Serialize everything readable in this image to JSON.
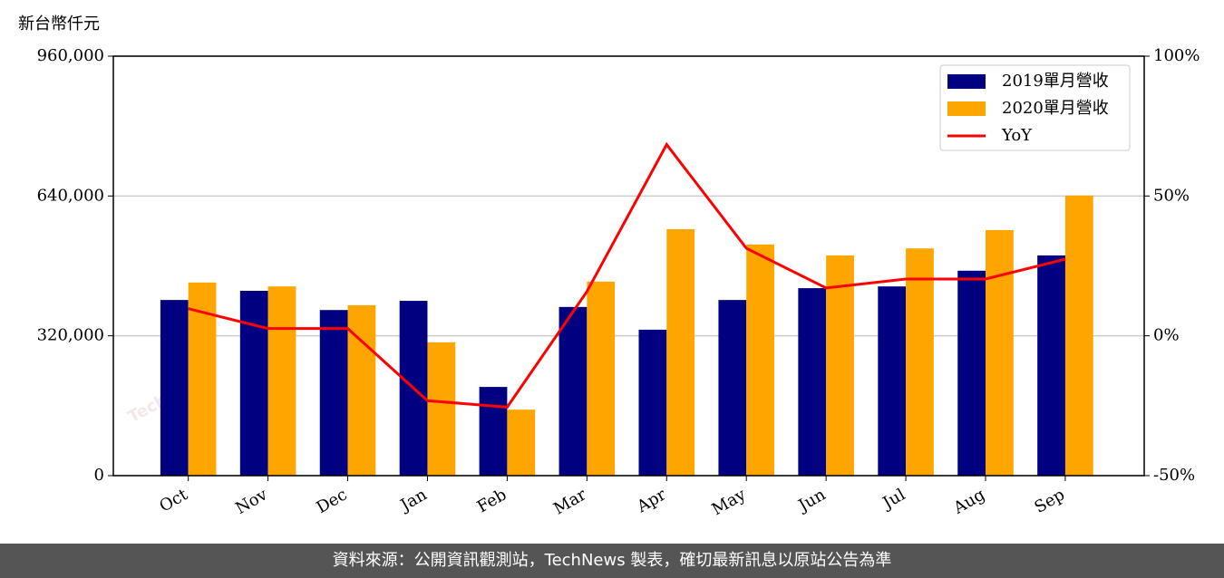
{
  "chart_data": {
    "type": "bar",
    "unit_label": "新台幣仟元",
    "watermark": "TechNews",
    "footer": "資料來源：公開資訊觀測站，TechNews 製表，確切最新訊息以原站公告為準",
    "categories": [
      "Oct",
      "Nov",
      "Dec",
      "Jan",
      "Feb",
      "Mar",
      "Apr",
      "May",
      "Jun",
      "Jul",
      "Aug",
      "Sep"
    ],
    "series": [
      {
        "name": "2019單月營收",
        "type": "bar",
        "color": "#000080",
        "axis": "y",
        "values": [
          402000,
          423000,
          379000,
          400000,
          203000,
          386000,
          334000,
          402000,
          429000,
          433000,
          469000,
          504000
        ]
      },
      {
        "name": "2020單月營收",
        "type": "bar",
        "color": "#ffa500",
        "axis": "y",
        "values": [
          442000,
          433000,
          390000,
          305000,
          151000,
          444000,
          564000,
          529000,
          504000,
          520000,
          562000,
          641000
        ]
      },
      {
        "name": "YoY",
        "type": "line",
        "color": "#ff0000",
        "axis": "y2",
        "values": [
          9.7,
          2.6,
          2.6,
          -23.2,
          -25.5,
          15.8,
          68.4,
          31.3,
          17.1,
          20.3,
          20.3,
          27.4
        ]
      }
    ],
    "ylim": [
      0,
      960000
    ],
    "yticks": [
      0,
      {
        "value": 320000,
        "label": "320,000"
      },
      {
        "value": 640000,
        "label": "640,000"
      },
      {
        "value": 960000,
        "label": "960,000"
      }
    ],
    "y2lim": [
      -50,
      100
    ],
    "y2ticks": [
      {
        "value": -50,
        "label": "-50%"
      },
      {
        "value": 0,
        "label": "0%"
      },
      {
        "value": 50,
        "label": "50%"
      },
      {
        "value": 100,
        "label": "100%"
      }
    ],
    "grid": true,
    "legend": "upper right"
  }
}
